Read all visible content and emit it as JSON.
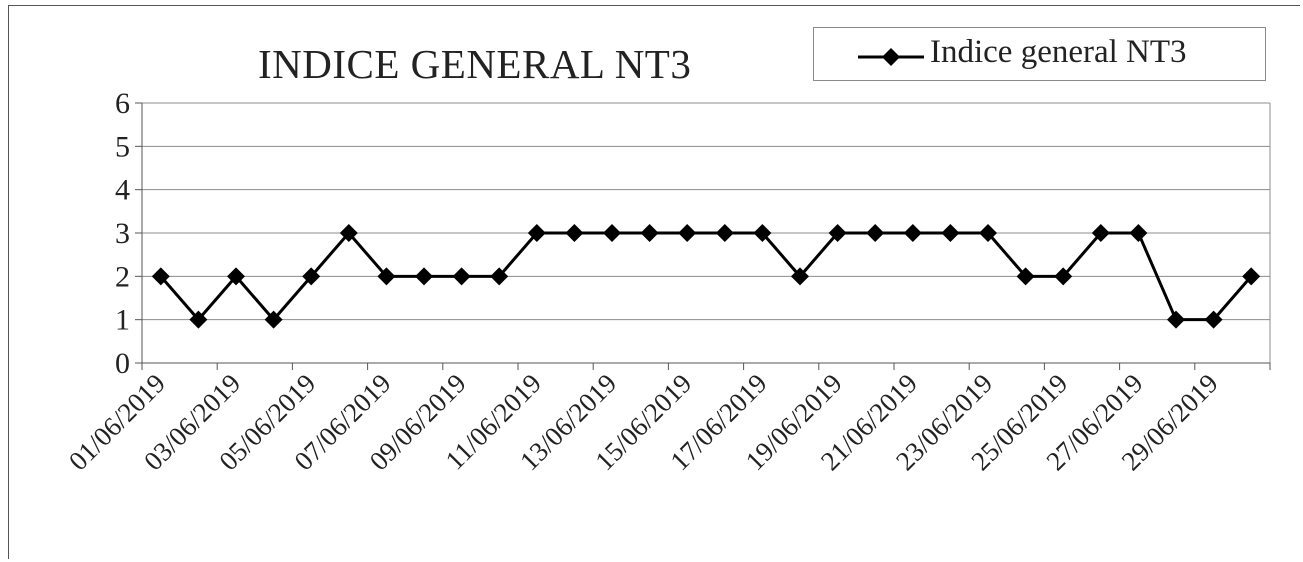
{
  "chart_data": {
    "type": "line",
    "title": "INDICE GENERAL NT3",
    "xlabel": "",
    "ylabel": "",
    "ylim": [
      0,
      6
    ],
    "yticks": [
      0,
      1,
      2,
      3,
      4,
      5,
      6
    ],
    "grid": true,
    "legend_position": "top-right",
    "x": [
      "01/06/2019",
      "02/06/2019",
      "03/06/2019",
      "04/06/2019",
      "05/06/2019",
      "06/06/2019",
      "07/06/2019",
      "08/06/2019",
      "09/06/2019",
      "10/06/2019",
      "11/06/2019",
      "12/06/2019",
      "13/06/2019",
      "14/06/2019",
      "15/06/2019",
      "16/06/2019",
      "17/06/2019",
      "18/06/2019",
      "19/06/2019",
      "20/06/2019",
      "21/06/2019",
      "22/06/2019",
      "23/06/2019",
      "24/06/2019",
      "25/06/2019",
      "26/06/2019",
      "27/06/2019",
      "28/06/2019",
      "29/06/2019",
      "30/06/2019"
    ],
    "x_tick_labels": [
      "01/06/2019",
      "03/06/2019",
      "05/06/2019",
      "07/06/2019",
      "09/06/2019",
      "11/06/2019",
      "13/06/2019",
      "15/06/2019",
      "17/06/2019",
      "19/06/2019",
      "21/06/2019",
      "23/06/2019",
      "25/06/2019",
      "27/06/2019",
      "29/06/2019"
    ],
    "series": [
      {
        "name": "Indice general NT3",
        "color": "#000000",
        "marker": "diamond",
        "values": [
          2,
          1,
          2,
          1,
          2,
          3,
          2,
          2,
          2,
          2,
          3,
          3,
          3,
          3,
          3,
          3,
          3,
          2,
          3,
          3,
          3,
          3,
          3,
          2,
          2,
          3,
          3,
          1,
          1,
          2
        ]
      }
    ]
  }
}
